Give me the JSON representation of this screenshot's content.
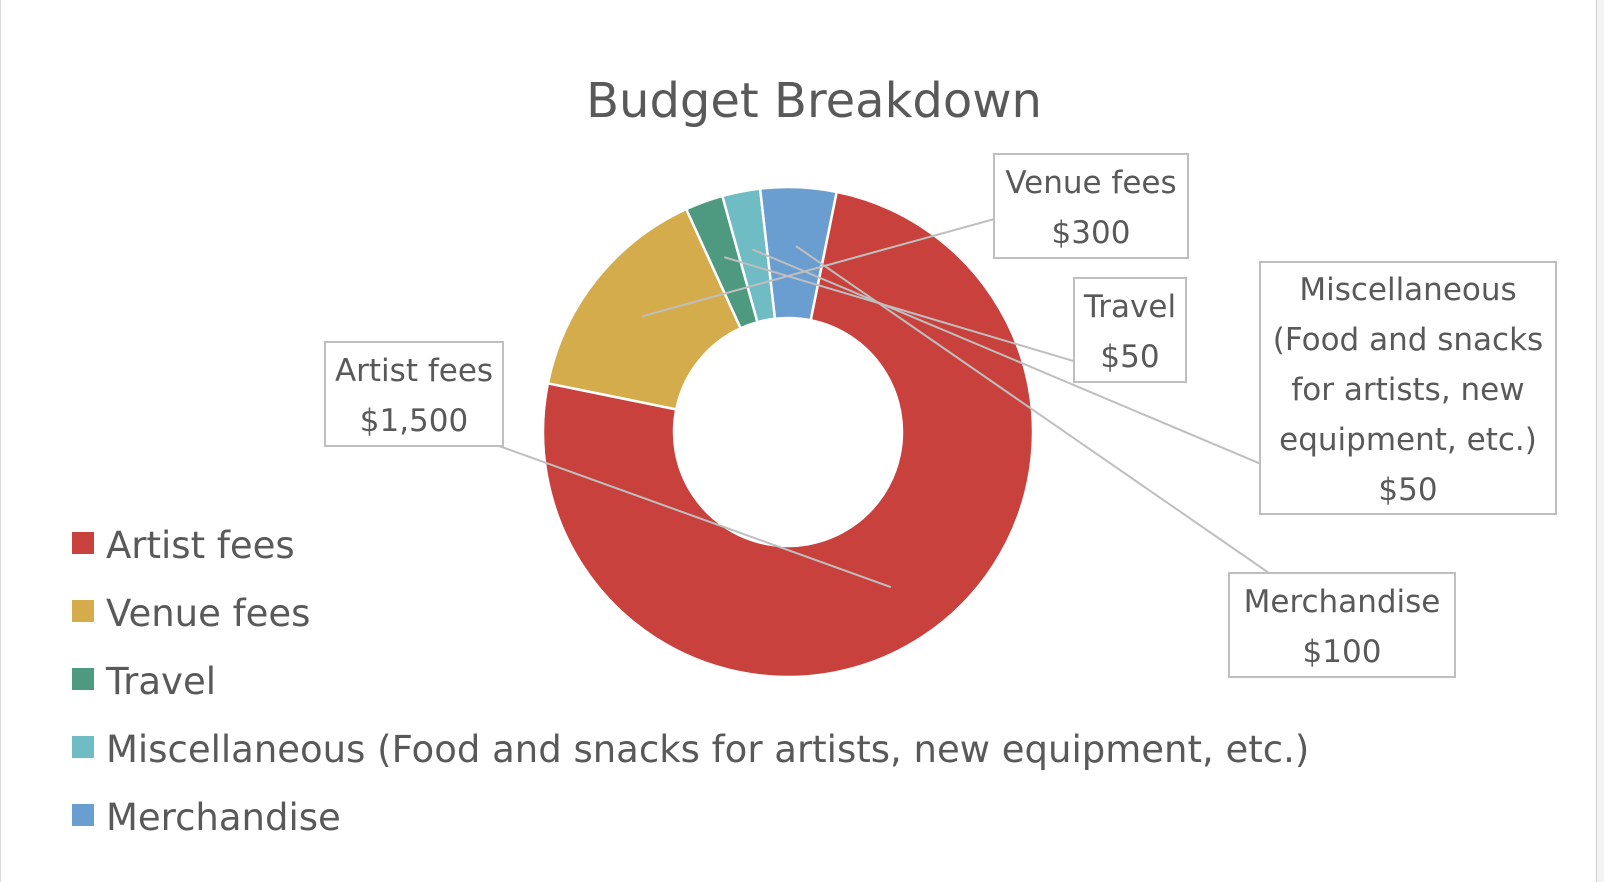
{
  "chart_data": {
    "type": "pie",
    "variant": "doughnut",
    "title": "Budget Breakdown",
    "categories": [
      "Artist fees",
      "Venue fees",
      "Travel",
      "Miscellaneous (Food and snacks for artists, new equipment, etc.)",
      "Merchandise"
    ],
    "values": [
      1500,
      300,
      50,
      50,
      100
    ],
    "colors": [
      "#c8413c",
      "#d4ac4b",
      "#4e9a80",
      "#6fbcc4",
      "#6a9dd0"
    ],
    "data_labels": [
      {
        "lines": [
          "Artist fees",
          "$1,500"
        ]
      },
      {
        "lines": [
          "Venue fees",
          "$300"
        ]
      },
      {
        "lines": [
          "Travel",
          "$50"
        ]
      },
      {
        "lines": [
          "Miscellaneous",
          "(Food and snacks",
          "for artists, new",
          "equipment, etc.)",
          "$50"
        ]
      },
      {
        "lines": [
          "Merchandise",
          "$100"
        ]
      }
    ],
    "legend_position": "bottom-left"
  }
}
